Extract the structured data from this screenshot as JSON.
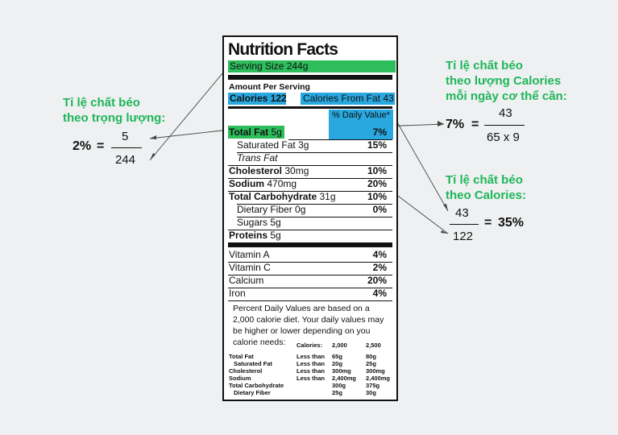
{
  "label": {
    "title": "Nutrition Facts",
    "serving_size": "Serving Size 244g",
    "amount_per_serving": "Amount Per Serving",
    "calories": "Calories 122",
    "calories_from_fat": "Calories From Fat 43",
    "daily_value_header": "% Daily Value*",
    "nutrients": [
      {
        "name": "Total Fat",
        "amount": "5g",
        "pct": "7%"
      },
      {
        "name": "Saturated Fat",
        "amount": "3g",
        "pct": "15%"
      },
      {
        "name": "Trans Fat",
        "amount": "",
        "pct": ""
      },
      {
        "name": "Cholesterol",
        "amount": "30mg",
        "pct": "10%"
      },
      {
        "name": "Sodium",
        "amount": "470mg",
        "pct": "20%"
      },
      {
        "name": "Total Carbohydrate",
        "amount": "31g",
        "pct": "10%"
      },
      {
        "name": "Dietary Fiber",
        "amount": "0g",
        "pct": "0%"
      },
      {
        "name": "Sugars",
        "amount": "5g",
        "pct": ""
      },
      {
        "name": "Proteins",
        "amount": "5g",
        "pct": ""
      }
    ],
    "vitamins": [
      {
        "name": "Vitamin A",
        "pct": "4%"
      },
      {
        "name": "Vitamin C",
        "pct": "2%"
      },
      {
        "name": "Calcium",
        "pct": "20%"
      },
      {
        "name": "Iron",
        "pct": "4%"
      }
    ],
    "footnote": "Percent Daily Values are based on a 2,000 calorie diet. Your daily values may be higher or lower depending on you calorie needs:",
    "table": {
      "header": [
        "Calories:",
        "2,000",
        "2,500"
      ],
      "rows": [
        {
          "name": "Total Fat",
          "cond": "Less than",
          "v1": "65g",
          "v2": "80g"
        },
        {
          "name": "Saturated Fat",
          "cond": "Less than",
          "v1": "20g",
          "v2": "25g"
        },
        {
          "name": "Cholesterol",
          "cond": "Less than",
          "v1": "300mg",
          "v2": "300mg"
        },
        {
          "name": "Sodium",
          "cond": "Less than",
          "v1": "2,400mg",
          "v2": "2,400mg"
        },
        {
          "name": "Total Carbohydrate",
          "cond": "",
          "v1": "300g",
          "v2": "375g"
        },
        {
          "name": "Dietary Fiber",
          "cond": "",
          "v1": "25g",
          "v2": "30g"
        }
      ]
    }
  },
  "annotations": {
    "weight": {
      "title_line1": "Tỉ lệ chất béo",
      "title_line2": "theo trọng lượng:",
      "result": "2%",
      "equals": "=",
      "numerator": "5",
      "denominator": "244"
    },
    "daily": {
      "title_line1": "Tỉ lệ chất béo",
      "title_line2": "theo lượng Calories",
      "title_line3": "mỗi ngày cơ thể cần:",
      "result": "7%",
      "equals": "=",
      "numerator": "43",
      "denominator": "65 x 9"
    },
    "calories": {
      "title_line1": "Tỉ lệ chất béo",
      "title_line2": "theo Calories:",
      "numerator": "43",
      "denominator": "122",
      "equals": "=",
      "result": "35%"
    }
  },
  "colors": {
    "highlight_green": "#2dbd5b",
    "highlight_blue": "#29a7df",
    "annotation_green": "#1fb65a"
  }
}
